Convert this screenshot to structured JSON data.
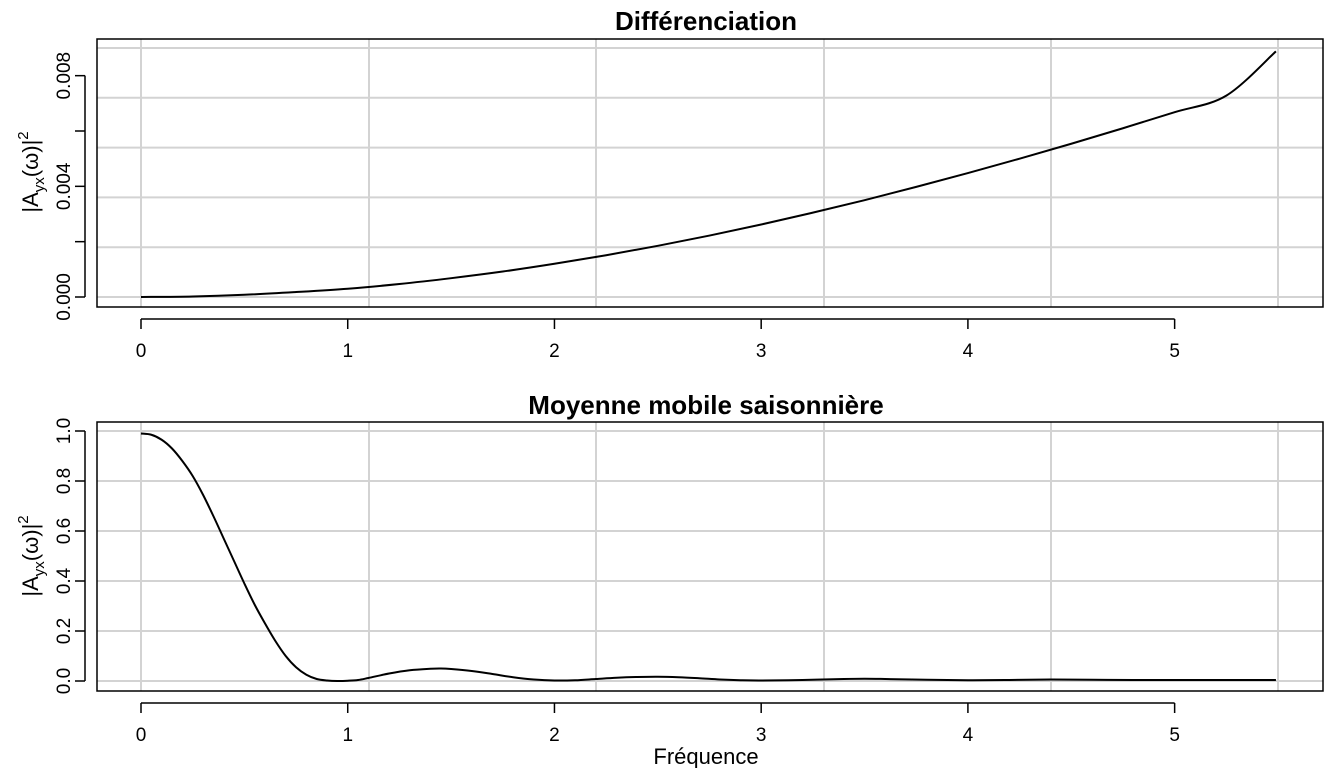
{
  "chart_data": [
    {
      "type": "line",
      "title": "Différenciation",
      "xlabel": "",
      "ylabel": {
        "prefix": "|A",
        "sub": "yx",
        "mid": "(ω)|",
        "sup": "2"
      },
      "xlim": [
        0,
        5.5
      ],
      "ylim": [
        0,
        0.009
      ],
      "xticks": [
        0,
        1,
        2,
        3,
        4,
        5
      ],
      "xtick_labels": [
        "0",
        "1",
        "2",
        "3",
        "4",
        "5"
      ],
      "yticks": [
        0,
        0.002,
        0.004,
        0.006,
        0.008
      ],
      "ytick_labels": [
        "0.000",
        "",
        "0.004",
        "",
        "0.008"
      ],
      "grid": true,
      "color": "#000000",
      "x": [
        0,
        0.25,
        0.5,
        0.75,
        1.0,
        1.25,
        1.5,
        1.75,
        2.0,
        2.25,
        2.5,
        2.75,
        3.0,
        3.25,
        3.5,
        3.75,
        4.0,
        4.25,
        4.5,
        4.75,
        5.0,
        5.25,
        5.49
      ],
      "y": [
        0,
        2e-05,
        8e-05,
        0.00018,
        0.0003,
        0.00047,
        0.00068,
        0.00092,
        0.0012,
        0.00151,
        0.00185,
        0.00222,
        0.00262,
        0.00305,
        0.0035,
        0.00398,
        0.00448,
        0.005,
        0.00554,
        0.0061,
        0.00668,
        0.00728,
        0.00888
      ]
    },
    {
      "type": "line",
      "title": "Moyenne mobile saisonnière",
      "xlabel": "Fréquence",
      "ylabel": {
        "prefix": "|A",
        "sub": "yx",
        "mid": "(ω)|",
        "sup": "2"
      },
      "xlim": [
        0,
        5.5
      ],
      "ylim": [
        0,
        1.0
      ],
      "xticks": [
        0,
        1,
        2,
        3,
        4,
        5
      ],
      "xtick_labels": [
        "0",
        "1",
        "2",
        "3",
        "4",
        "5"
      ],
      "yticks": [
        0,
        0.2,
        0.4,
        0.6,
        0.8,
        1.0
      ],
      "ytick_labels": [
        "0.0",
        "0.2",
        "0.4",
        "0.6",
        "0.8",
        "1.0"
      ],
      "grid": true,
      "color": "#000000",
      "x": [
        0.0,
        0.05,
        0.1,
        0.15,
        0.2,
        0.25,
        0.3,
        0.35,
        0.4,
        0.45,
        0.5,
        0.55,
        0.6,
        0.65,
        0.7,
        0.75,
        0.8,
        0.85,
        0.9,
        0.95,
        1.0,
        1.05,
        1.1,
        1.2,
        1.3,
        1.4,
        1.45,
        1.5,
        1.6,
        1.7,
        1.8,
        1.9,
        2.0,
        2.1,
        2.2,
        2.3,
        2.4,
        2.5,
        2.6,
        2.7,
        2.8,
        2.9,
        3.0,
        3.2,
        3.4,
        3.5,
        3.6,
        3.8,
        4.0,
        4.2,
        4.4,
        4.6,
        4.8,
        5.0,
        5.2,
        5.49
      ],
      "y": [
        0.99,
        0.985,
        0.965,
        0.93,
        0.88,
        0.82,
        0.745,
        0.66,
        0.57,
        0.48,
        0.39,
        0.305,
        0.23,
        0.16,
        0.1,
        0.055,
        0.025,
        0.008,
        0.002,
        0.0,
        0.001,
        0.004,
        0.012,
        0.03,
        0.043,
        0.049,
        0.05,
        0.048,
        0.04,
        0.028,
        0.015,
        0.006,
        0.002,
        0.003,
        0.008,
        0.013,
        0.016,
        0.017,
        0.015,
        0.011,
        0.006,
        0.003,
        0.002,
        0.004,
        0.008,
        0.009,
        0.008,
        0.005,
        0.003,
        0.004,
        0.006,
        0.005,
        0.004,
        0.004,
        0.004,
        0.004
      ]
    }
  ]
}
